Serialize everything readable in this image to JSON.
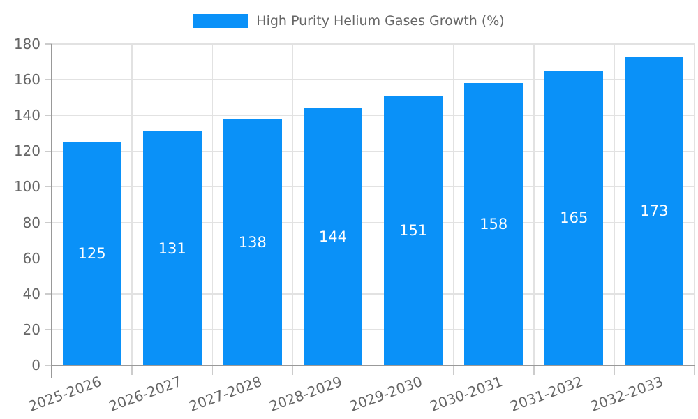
{
  "colors": {
    "bar": "#0a91f8",
    "axis_line": "#999999",
    "grid_line": "#e2e2e2",
    "tick_mark": "#cccccc",
    "label_text": "#666666",
    "value_text": "#ffffff",
    "background": "#ffffff"
  },
  "legend": {
    "label": "High Purity Helium Gases Growth (%)",
    "position": "top"
  },
  "chart_data": {
    "type": "bar",
    "title": "",
    "legend_entries": [
      "High Purity Helium Gases Growth (%)"
    ],
    "categories": [
      "2025-2026",
      "2026-2027",
      "2027-2028",
      "2028-2029",
      "2029-2030",
      "2030-2031",
      "2031-2032",
      "2032-2033"
    ],
    "values": [
      125,
      131,
      138,
      144,
      151,
      158,
      165,
      173
    ],
    "value_labels": [
      "125",
      "131",
      "138",
      "144",
      "151",
      "158",
      "165",
      "173"
    ],
    "y_ticks": [
      "0",
      "20",
      "40",
      "60",
      "80",
      "100",
      "120",
      "140",
      "160",
      "180"
    ],
    "xlabel": "",
    "ylabel": "",
    "ylim": [
      0,
      180
    ],
    "ytick_step": 20,
    "grid": true,
    "legend_position": "top",
    "bar_label_style": "centered-white",
    "x_label_rotation_deg": -20
  }
}
